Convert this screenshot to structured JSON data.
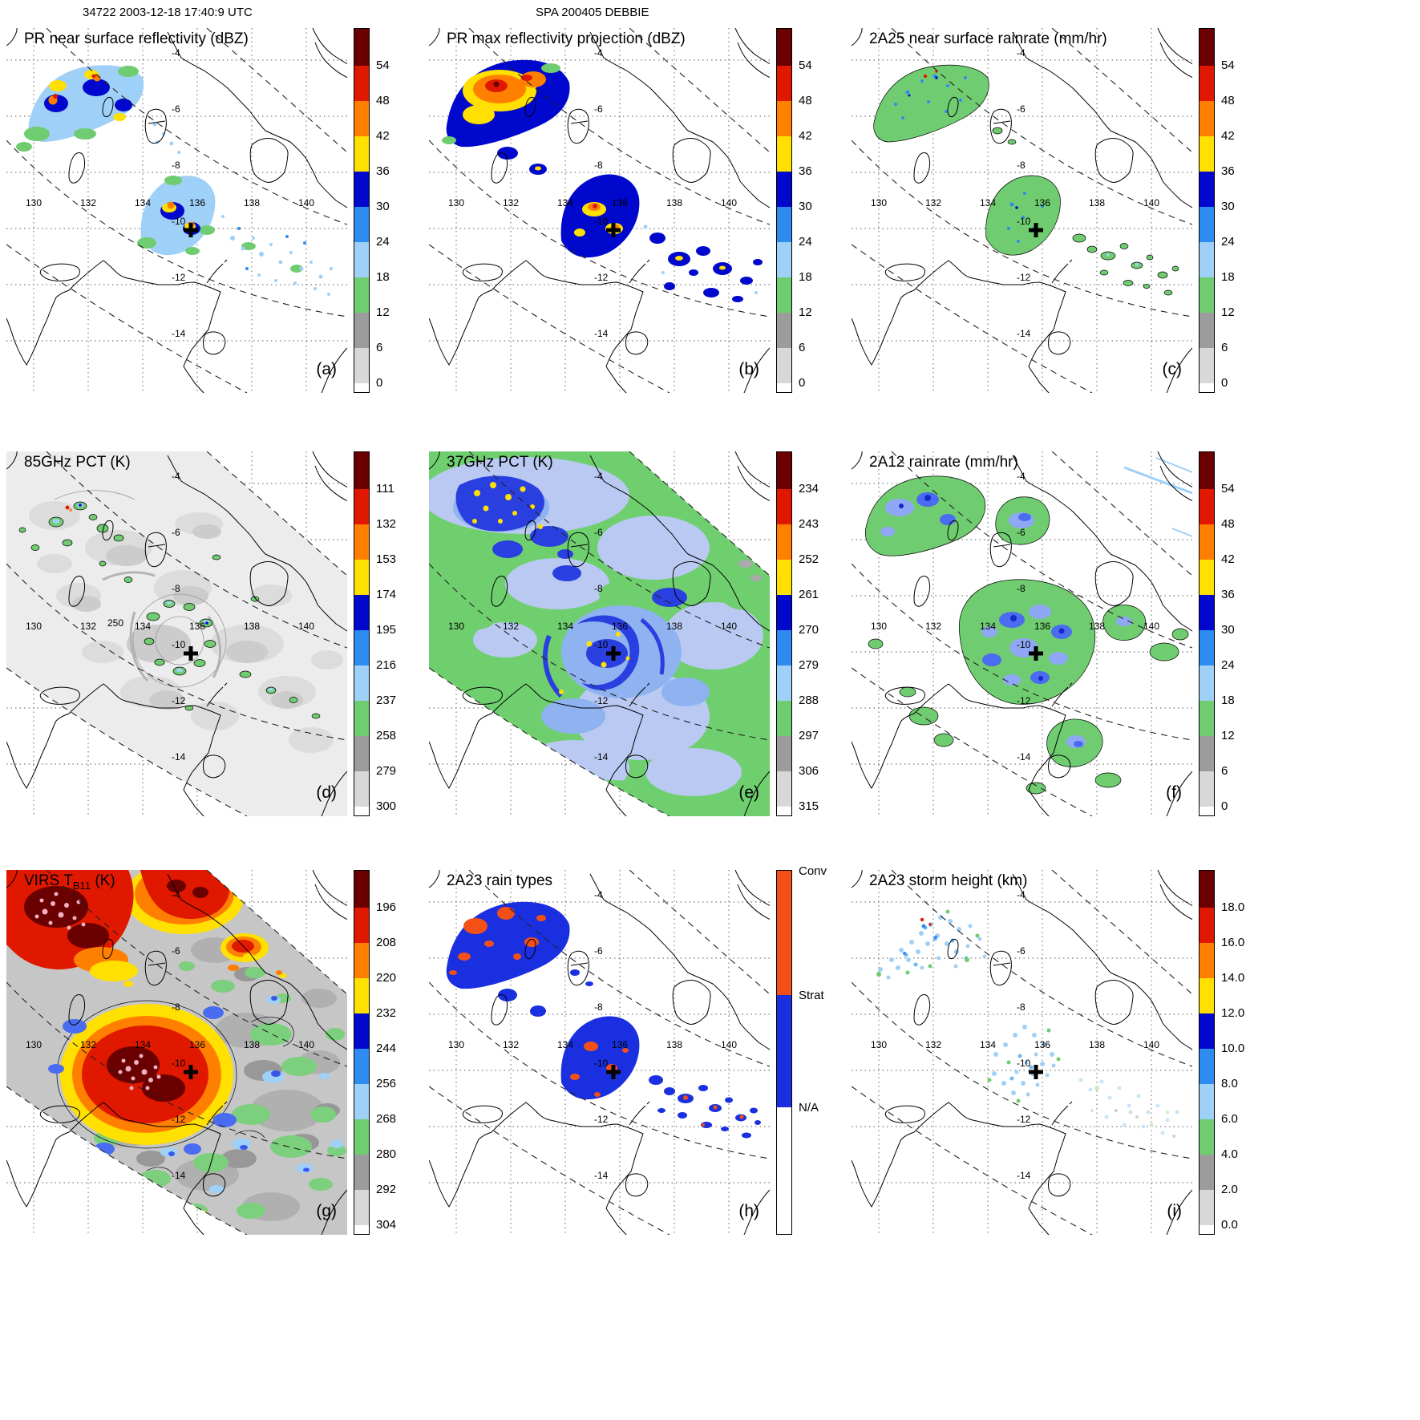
{
  "header": {
    "left": "34722 2003-12-18 17:40:9 UTC",
    "center": "SPA 200405 DEBBIE"
  },
  "map": {
    "lon_labels": [
      "130",
      "132",
      "134",
      "136",
      "138",
      "140"
    ],
    "lat_labels": [
      "-4",
      "-6",
      "-8",
      "-10",
      "-12",
      "-14"
    ]
  },
  "colorbar_colors": [
    "#6b0000",
    "#e01800",
    "#ff8000",
    "#ffe000",
    "#0008cd",
    "#2e8cf0",
    "#9fd0f8",
    "#70cc70",
    "#9c9c9c",
    "#d8d8d8",
    "#ffffff"
  ],
  "rain_type_colors": {
    "conv": "#f35018",
    "strat": "#1a2fe0",
    "na": "#ffffff"
  },
  "panels": [
    {
      "tag": "(a)",
      "title_pre": "PR near surface reflectivity (dBZ)",
      "title_sub": "",
      "title_post": "",
      "ticks": [
        "54",
        "48",
        "42",
        "36",
        "30",
        "24",
        "18",
        "12",
        "6",
        "0"
      ]
    },
    {
      "tag": "(b)",
      "title_pre": "PR max reflectivity projection (dBZ)",
      "title_sub": "",
      "title_post": "",
      "ticks": [
        "54",
        "48",
        "42",
        "36",
        "30",
        "24",
        "18",
        "12",
        "6",
        "0"
      ]
    },
    {
      "tag": "(c)",
      "title_pre": "2A25 near surface rainrate (mm/hr)",
      "title_sub": "",
      "title_post": "",
      "ticks": [
        "54",
        "48",
        "42",
        "36",
        "30",
        "24",
        "18",
        "12",
        "6",
        "0"
      ]
    },
    {
      "tag": "(d)",
      "title_pre": "85GHz PCT (K)",
      "title_sub": "",
      "title_post": "",
      "contour_label": "250",
      "ticks": [
        "111",
        "132",
        "153",
        "174",
        "195",
        "216",
        "237",
        "258",
        "279",
        "300"
      ]
    },
    {
      "tag": "(e)",
      "title_pre": "37GHz PCT (K)",
      "title_sub": "",
      "title_post": "",
      "ticks": [
        "234",
        "243",
        "252",
        "261",
        "270",
        "279",
        "288",
        "297",
        "306",
        "315"
      ]
    },
    {
      "tag": "(f)",
      "title_pre": "2A12 rainrate (mm/hr)",
      "title_sub": "",
      "title_post": "",
      "ticks": [
        "54",
        "48",
        "42",
        "36",
        "30",
        "24",
        "18",
        "12",
        "6",
        "0"
      ]
    },
    {
      "tag": "(g)",
      "title_pre": "VIRS T",
      "title_sub": "B11",
      "title_post": " (K)",
      "ticks": [
        "196",
        "208",
        "220",
        "232",
        "244",
        "256",
        "268",
        "280",
        "292",
        "304"
      ]
    },
    {
      "tag": "(h)",
      "title_pre": "2A23 rain types",
      "title_sub": "",
      "title_post": "",
      "categories": [
        "Conv",
        "Strat",
        "N/A"
      ]
    },
    {
      "tag": "(i)",
      "title_pre": "2A23 storm height (km)",
      "title_sub": "",
      "title_post": "",
      "ticks": [
        "18.0",
        "16.0",
        "14.0",
        "12.0",
        "10.0",
        "8.0",
        "6.0",
        "4.0",
        "2.0",
        "0.0"
      ]
    }
  ]
}
